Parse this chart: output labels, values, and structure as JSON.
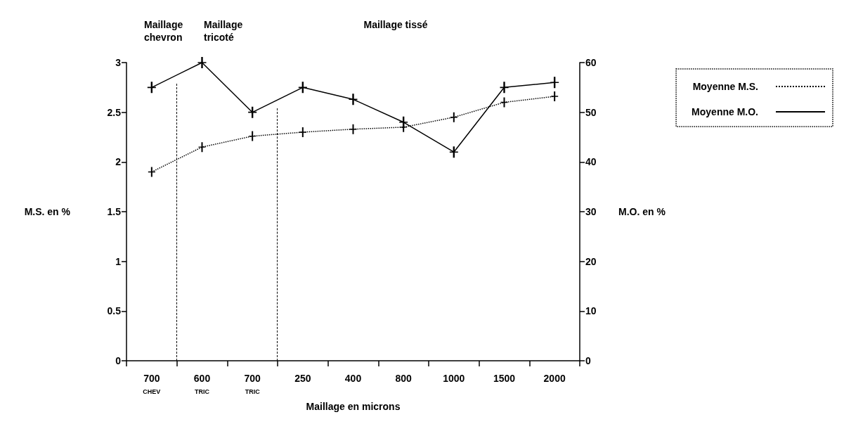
{
  "chart_data": {
    "type": "line",
    "xlabel": "Maillage en microns",
    "ylabel": "M.S. en %",
    "y2label": "M.O. en %",
    "categories": [
      "700\nCHEV",
      "600\nTRIC",
      "700\nTRIC",
      "250",
      "400",
      "800",
      "1000",
      "1500",
      "2000"
    ],
    "series": [
      {
        "name": "Moyenne M.S.",
        "color": "#000000",
        "line_style": "dotted",
        "values": [
          1.9,
          2.15,
          2.26,
          2.3,
          2.33,
          2.35,
          2.45,
          2.6,
          2.66
        ]
      },
      {
        "name": "Moyenne M.O.",
        "color": "#000000",
        "line_style": "solid",
        "axis": "y2",
        "values": [
          55,
          60,
          50,
          55,
          52.6,
          48,
          42,
          55,
          56
        ]
      }
    ],
    "ylim": [
      0,
      3
    ],
    "yticks": [
      0,
      0.5,
      1,
      1.5,
      2,
      2.5,
      3
    ],
    "y2lim": [
      0,
      60
    ],
    "y2ticks": [
      0,
      10,
      20,
      30,
      40,
      50,
      60
    ],
    "marker": "cross",
    "annotations": [
      "Maillage\nchevron",
      "Maillage\ntricoté",
      "Maillage tissé"
    ],
    "grid": false,
    "legend": "top right"
  }
}
